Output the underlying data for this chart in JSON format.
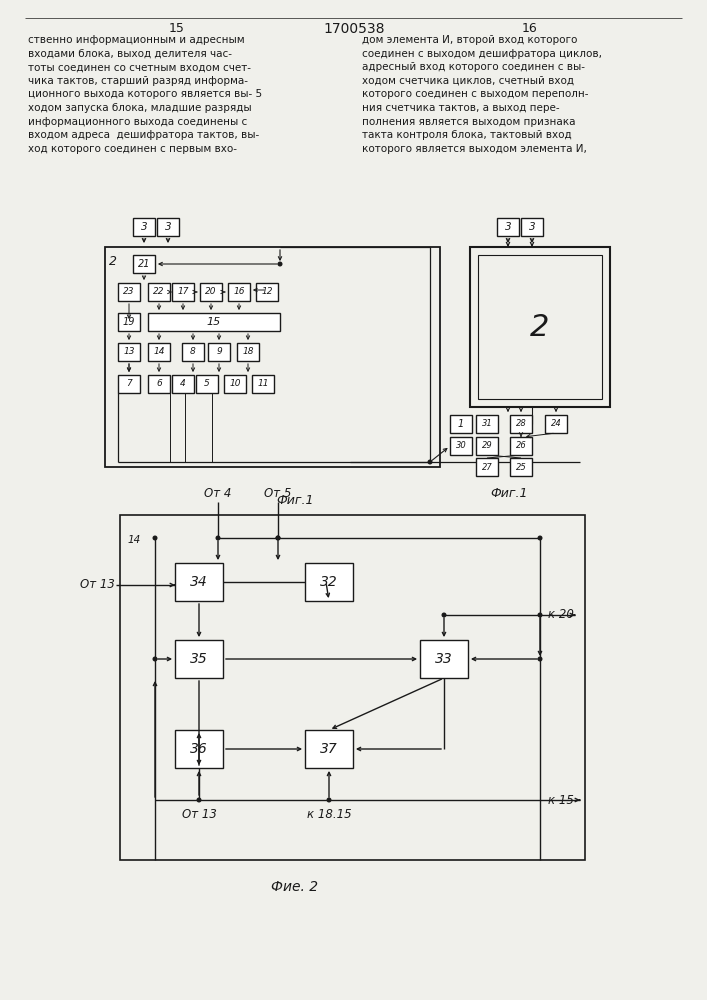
{
  "bg_color": "#f0f0eb",
  "lc": "#1a1a1a",
  "bf": "#ffffff",
  "page_left": "15",
  "page_center": "1700538",
  "page_right": "16",
  "text_left": "ственно информационным и адресным\nвходами блока, выход делителя час-\nтоты соединен со счетным входом счет-\nчика тактов, старший разряд информа-\nционного выхода которого является вы- 5\nходом запуска блока, младшие разряды\nинформационного выхода соединены с\nвходом адреса  дешифратора тактов, вы-\nход которого соединен с первым вхо-",
  "text_right": "дом элемента И, второй вход которого\nсоединен с выходом дешифратора циклов,\nадресный вход которого соединен с вы-\nходом счетчика циклов, счетный вход\nкоторого соединен с выходом переполн-\nния счетчика тактов, а выход пере-\nполнения является выходом признака\nтакта контроля блока, тактовый вход\nкоторого является выходом элемента И,",
  "fig1_label": "Фиг.1",
  "fig2_label": "Фие. 2"
}
